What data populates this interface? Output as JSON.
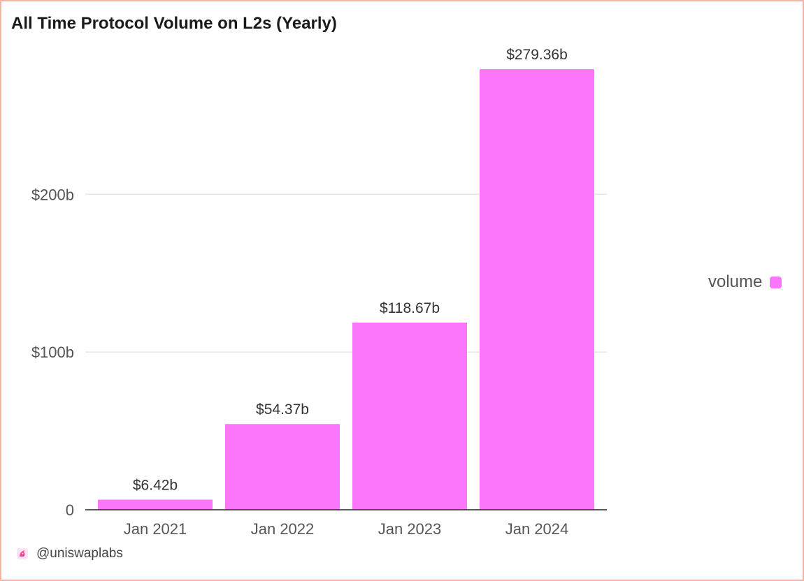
{
  "header": {
    "title": "All Time Protocol Volume on L2s (Yearly)"
  },
  "footer": {
    "handle": "@uniswaplabs",
    "icon": "unicorn-icon"
  },
  "colors": {
    "bar": "#fb76fb",
    "grid": "#e6e6e6",
    "axis": "#222222",
    "border": "#f2b4a6"
  },
  "chart_data": {
    "type": "bar",
    "title": "All Time Protocol Volume on L2s (Yearly)",
    "categories": [
      "Jan 2021",
      "Jan 2022",
      "Jan 2023",
      "Jan 2024"
    ],
    "series": [
      {
        "name": "volume",
        "values": [
          6.42,
          54.37,
          118.67,
          279.36
        ],
        "labels": [
          "$6.42b",
          "$54.37b",
          "$118.67b",
          "$279.36b"
        ]
      }
    ],
    "y_ticks": [
      0,
      100,
      200
    ],
    "y_tick_labels": [
      "0",
      "$100b",
      "$200b"
    ],
    "ylim": [
      0,
      300
    ],
    "xlabel": "",
    "ylabel": "",
    "grid": true,
    "legend_position": "right"
  }
}
